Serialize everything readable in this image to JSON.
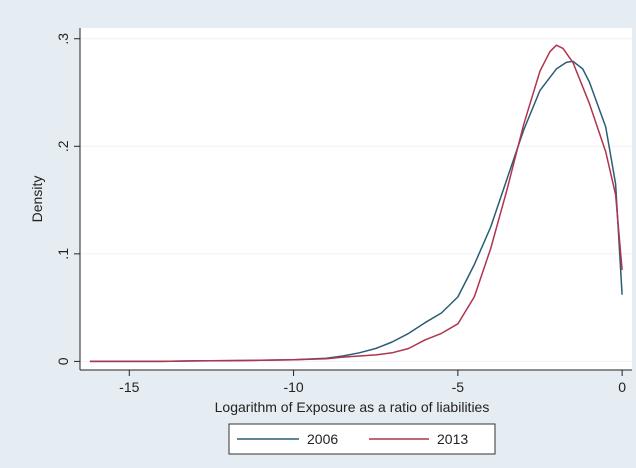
{
  "chart_data": {
    "type": "line",
    "title": "",
    "xlabel": "Logarithm of Exposure as a ratio of liabilities",
    "ylabel": "Density",
    "xlim": [
      -16.5,
      0.3
    ],
    "ylim": [
      -0.008,
      0.31
    ],
    "x_ticks": [
      -15,
      -10,
      -5,
      0
    ],
    "x_tick_labels": [
      "-15",
      "-10",
      "-5",
      "0"
    ],
    "y_ticks": [
      0,
      0.1,
      0.2,
      0.3
    ],
    "y_tick_labels": [
      "0",
      ".1",
      ".2",
      ".3"
    ],
    "grid": true,
    "legend_position": "bottom",
    "series": [
      {
        "name": "2006",
        "color": "#2b5d74",
        "x": [
          -16.2,
          -15,
          -14,
          -13,
          -12,
          -11,
          -10,
          -9,
          -8.5,
          -8,
          -7.5,
          -7,
          -6.5,
          -6,
          -5.5,
          -5,
          -4.5,
          -4,
          -3.5,
          -3,
          -2.5,
          -2,
          -1.7,
          -1.5,
          -1.2,
          -1,
          -0.5,
          -0.2,
          0
        ],
        "y": [
          0.0,
          0.0,
          0.0,
          0.0005,
          0.0007,
          0.001,
          0.0015,
          0.003,
          0.005,
          0.008,
          0.012,
          0.018,
          0.026,
          0.036,
          0.045,
          0.06,
          0.09,
          0.125,
          0.17,
          0.215,
          0.252,
          0.272,
          0.278,
          0.279,
          0.272,
          0.26,
          0.218,
          0.165,
          0.062
        ]
      },
      {
        "name": "2013",
        "color": "#b0344f",
        "x": [
          -16.2,
          -15,
          -14,
          -13,
          -12,
          -11,
          -10,
          -9,
          -8.5,
          -8,
          -7.5,
          -7,
          -6.5,
          -6,
          -5.5,
          -5,
          -4.5,
          -4,
          -3.5,
          -3,
          -2.5,
          -2.2,
          -2,
          -1.8,
          -1.5,
          -1,
          -0.5,
          -0.2,
          0
        ],
        "y": [
          0.0,
          0.0,
          0.0,
          0.0005,
          0.0007,
          0.001,
          0.0015,
          0.0025,
          0.004,
          0.005,
          0.006,
          0.008,
          0.012,
          0.02,
          0.026,
          0.035,
          0.06,
          0.105,
          0.16,
          0.22,
          0.27,
          0.288,
          0.294,
          0.291,
          0.278,
          0.24,
          0.195,
          0.155,
          0.085
        ]
      }
    ]
  }
}
